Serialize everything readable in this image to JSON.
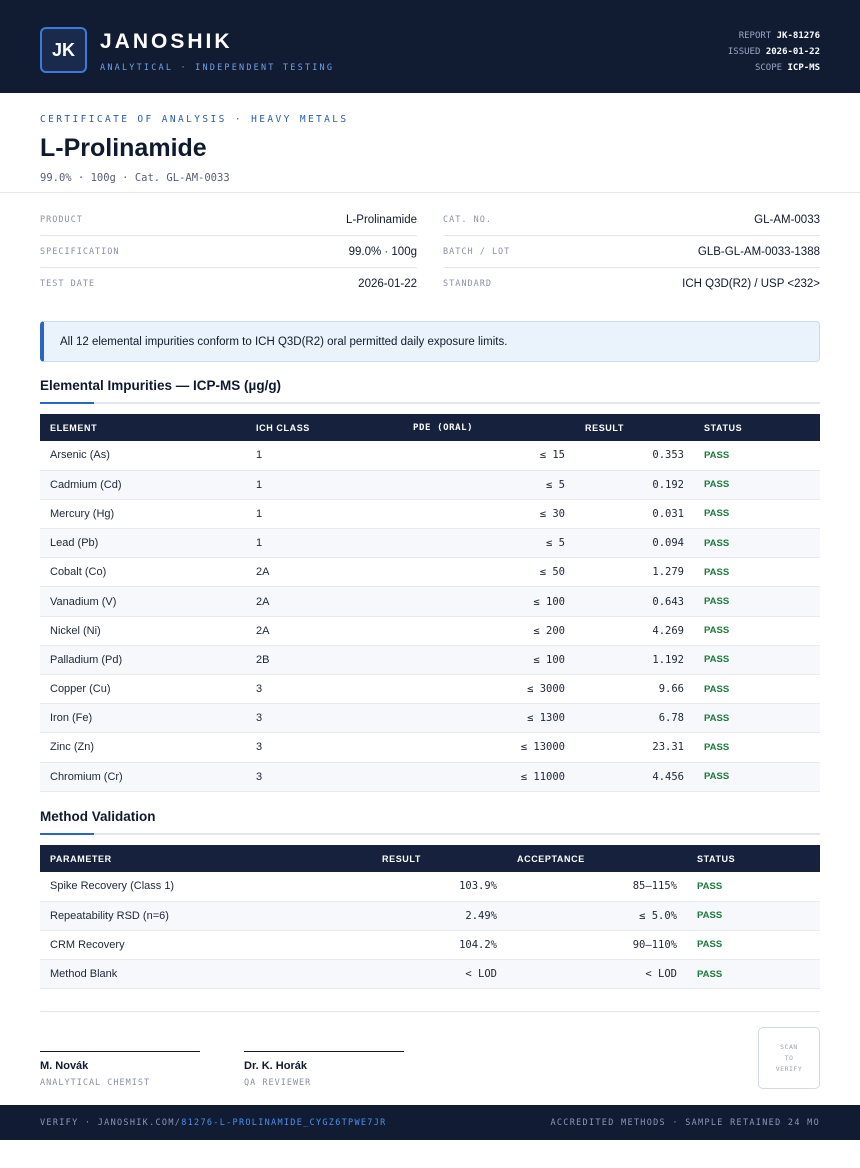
{
  "header": {
    "logo_initials": "JK",
    "brand": "JANOSHIK",
    "tagline": "ANALYTICAL · INDEPENDENT TESTING",
    "report_label": "REPORT",
    "report_value": "JK-81276",
    "issued_label": "ISSUED",
    "issued_value": "2026-01-22",
    "scope_label": "SCOPE",
    "scope_value": "ICP-MS"
  },
  "doc": {
    "kicker": "CERTIFICATE OF ANALYSIS · HEAVY METALS",
    "title": "L-Prolinamide",
    "subtitle": "99.0% · 100g  ·  Cat. GL-AM-0033"
  },
  "info": {
    "left": [
      {
        "label": "PRODUCT",
        "value": "L-Prolinamide"
      },
      {
        "label": "SPECIFICATION",
        "value": "99.0% · 100g"
      },
      {
        "label": "TEST DATE",
        "value": "2026-01-22"
      }
    ],
    "right": [
      {
        "label": "CAT. NO.",
        "value": "GL-AM-0033"
      },
      {
        "label": "BATCH / LOT",
        "value": "GLB-GL-AM-0033-1388"
      },
      {
        "label": "STANDARD",
        "value": "ICH Q3D(R2) / USP <232>"
      }
    ]
  },
  "notice": "All 12 elemental impurities conform to ICH Q3D(R2) oral permitted daily exposure limits.",
  "impurities": {
    "title": "Elemental Impurities — ICP-MS (µg/g)",
    "headers": [
      "ELEMENT",
      "ICH CLASS",
      "PDE (ORAL)",
      "RESULT",
      "STATUS"
    ],
    "rows": [
      [
        "Arsenic (As)",
        "1",
        "≤ 15",
        "0.353",
        "PASS"
      ],
      [
        "Cadmium (Cd)",
        "1",
        "≤ 5",
        "0.192",
        "PASS"
      ],
      [
        "Mercury (Hg)",
        "1",
        "≤ 30",
        "0.031",
        "PASS"
      ],
      [
        "Lead (Pb)",
        "1",
        "≤ 5",
        "0.094",
        "PASS"
      ],
      [
        "Cobalt (Co)",
        "2A",
        "≤ 50",
        "1.279",
        "PASS"
      ],
      [
        "Vanadium (V)",
        "2A",
        "≤ 100",
        "0.643",
        "PASS"
      ],
      [
        "Nickel (Ni)",
        "2A",
        "≤ 200",
        "4.269",
        "PASS"
      ],
      [
        "Palladium (Pd)",
        "2B",
        "≤ 100",
        "1.192",
        "PASS"
      ],
      [
        "Copper (Cu)",
        "3",
        "≤ 3000",
        "9.66",
        "PASS"
      ],
      [
        "Iron (Fe)",
        "3",
        "≤ 1300",
        "6.78",
        "PASS"
      ],
      [
        "Zinc (Zn)",
        "3",
        "≤ 13000",
        "23.31",
        "PASS"
      ],
      [
        "Chromium (Cr)",
        "3",
        "≤ 11000",
        "4.456",
        "PASS"
      ]
    ]
  },
  "validation": {
    "title": "Method Validation",
    "headers": [
      "PARAMETER",
      "RESULT",
      "ACCEPTANCE",
      "STATUS"
    ],
    "rows": [
      [
        "Spike Recovery (Class 1)",
        "103.9%",
        "85–115%",
        "PASS"
      ],
      [
        "Repeatability RSD (n=6)",
        "2.49%",
        "≤ 5.0%",
        "PASS"
      ],
      [
        "CRM Recovery",
        "104.2%",
        "90–110%",
        "PASS"
      ],
      [
        "Method Blank",
        "< LOD",
        "< LOD",
        "PASS"
      ]
    ]
  },
  "signatures": [
    {
      "name": "M. Novák",
      "role": "ANALYTICAL CHEMIST"
    },
    {
      "name": "Dr. K. Horák",
      "role": "QA REVIEWER"
    }
  ],
  "scan": [
    "SCAN",
    "TO",
    "VERIFY"
  ],
  "footer": {
    "verify_prefix": "VERIFY · JANOSHIK.COM/",
    "verify_link": "81276-L-PROLINAMIDE_CYGZ6TPWE7JR",
    "right": "ACCREDITED METHODS · SAMPLE RETAINED 24 MO"
  }
}
